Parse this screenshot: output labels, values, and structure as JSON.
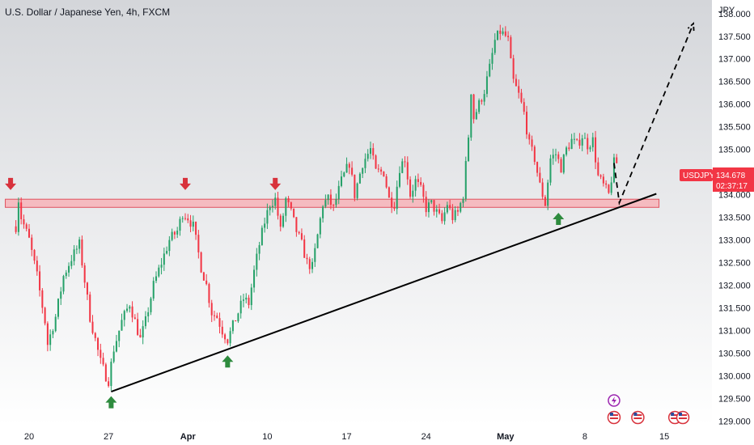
{
  "header": {
    "title": "U.S. Dollar / Japanese Yen, 4h, FXCM"
  },
  "price_axis": {
    "currency": "JPY"
  },
  "last_price": {
    "symbol": "USDJPY",
    "value": "134.678",
    "countdown": "02:37:17"
  },
  "colors": {
    "up": "#26a169",
    "down": "#f23645",
    "zone_fill": "#f7b3b8",
    "zone_stroke": "#e0525f",
    "trendline": "#000000",
    "projection": "#000000",
    "arrow_up": "#2e8b3e",
    "arrow_down": "#d8323c"
  },
  "chart_data": {
    "type": "candlestick",
    "title": "U.S. Dollar / Japanese Yen, 4h, FXCM",
    "symbol": "USDJPY",
    "timeframe": "4h",
    "source": "FXCM",
    "ylim": [
      128.9,
      138.3
    ],
    "y_ticks": [
      "129.000",
      "129.500",
      "130.000",
      "130.500",
      "131.000",
      "131.500",
      "132.000",
      "132.500",
      "133.000",
      "133.500",
      "134.000",
      "134.500",
      "135.000",
      "135.500",
      "136.000",
      "136.500",
      "137.000",
      "137.500",
      "138.000"
    ],
    "x_ticks": [
      {
        "label": "20",
        "i": 5
      },
      {
        "label": "27",
        "i": 35
      },
      {
        "label": "Apr",
        "i": 65
      },
      {
        "label": "10",
        "i": 95
      },
      {
        "label": "17",
        "i": 125
      },
      {
        "label": "24",
        "i": 155
      },
      {
        "label": "May",
        "i": 185
      },
      {
        "label": "8",
        "i": 215
      },
      {
        "label": "15",
        "i": 245
      }
    ],
    "x_range": [
      -6,
      263
    ],
    "candle_count": 232,
    "anchors": [
      [
        0,
        133.3
      ],
      [
        1,
        133.9
      ],
      [
        2,
        133.5
      ],
      [
        5,
        133.0
      ],
      [
        8,
        132.2
      ],
      [
        11,
        131.2
      ],
      [
        12,
        130.7
      ],
      [
        15,
        131.3
      ],
      [
        18,
        132.2
      ],
      [
        21,
        132.6
      ],
      [
        24,
        132.9
      ],
      [
        26,
        132.1
      ],
      [
        28,
        131.3
      ],
      [
        30,
        130.8
      ],
      [
        32,
        130.3
      ],
      [
        34,
        130.0
      ],
      [
        35,
        129.9
      ],
      [
        37,
        130.6
      ],
      [
        40,
        131.2
      ],
      [
        43,
        131.6
      ],
      [
        45,
        131.2
      ],
      [
        47,
        130.8
      ],
      [
        49,
        131.2
      ],
      [
        52,
        132.0
      ],
      [
        55,
        132.5
      ],
      [
        58,
        133.0
      ],
      [
        61,
        133.2
      ],
      [
        63,
        133.6
      ],
      [
        65,
        133.5
      ],
      [
        67,
        133.3
      ],
      [
        70,
        132.4
      ],
      [
        72,
        132.0
      ],
      [
        74,
        131.4
      ],
      [
        76,
        131.3
      ],
      [
        78,
        131.0
      ],
      [
        80,
        130.8
      ],
      [
        82,
        131.1
      ],
      [
        84,
        131.4
      ],
      [
        86,
        131.7
      ],
      [
        88,
        131.6
      ],
      [
        90,
        132.3
      ],
      [
        92,
        132.9
      ],
      [
        94,
        133.4
      ],
      [
        96,
        133.8
      ],
      [
        98,
        133.9
      ],
      [
        100,
        133.2
      ],
      [
        102,
        133.9
      ],
      [
        104,
        133.6
      ],
      [
        106,
        133.2
      ],
      [
        108,
        132.9
      ],
      [
        110,
        132.5
      ],
      [
        112,
        132.4
      ],
      [
        114,
        133.1
      ],
      [
        116,
        133.8
      ],
      [
        118,
        133.9
      ],
      [
        120,
        133.7
      ],
      [
        123,
        134.3
      ],
      [
        126,
        134.7
      ],
      [
        128,
        134.0
      ],
      [
        131,
        134.7
      ],
      [
        134,
        135.0
      ],
      [
        136,
        134.5
      ],
      [
        139,
        134.5
      ],
      [
        141,
        133.9
      ],
      [
        143,
        133.8
      ],
      [
        145,
        134.6
      ],
      [
        147,
        134.8
      ],
      [
        149,
        134.0
      ],
      [
        151,
        134.3
      ],
      [
        153,
        134.1
      ],
      [
        155,
        133.7
      ],
      [
        157,
        133.8
      ],
      [
        159,
        133.6
      ],
      [
        161,
        133.4
      ],
      [
        163,
        133.8
      ],
      [
        165,
        133.5
      ],
      [
        167,
        133.6
      ],
      [
        169,
        134.0
      ],
      [
        171,
        135.3
      ],
      [
        172,
        136.3
      ],
      [
        173,
        135.7
      ],
      [
        175,
        136.0
      ],
      [
        177,
        136.3
      ],
      [
        179,
        136.8
      ],
      [
        181,
        137.4
      ],
      [
        183,
        137.6
      ],
      [
        185,
        137.5
      ],
      [
        186,
        137.4
      ],
      [
        187,
        136.9
      ],
      [
        188,
        136.5
      ],
      [
        190,
        136.2
      ],
      [
        192,
        135.8
      ],
      [
        194,
        135.1
      ],
      [
        196,
        134.8
      ],
      [
        198,
        134.2
      ],
      [
        200,
        133.8
      ],
      [
        202,
        134.8
      ],
      [
        204,
        134.9
      ],
      [
        206,
        134.6
      ],
      [
        208,
        135.0
      ],
      [
        210,
        135.2
      ],
      [
        212,
        135.1
      ],
      [
        214,
        135.3
      ],
      [
        216,
        135.1
      ],
      [
        218,
        135.2
      ],
      [
        220,
        134.4
      ],
      [
        222,
        134.2
      ],
      [
        224,
        134.0
      ],
      [
        226,
        134.7
      ],
      [
        227,
        134.7
      ]
    ],
    "resistance_zone": {
      "top": 133.9,
      "bottom": 133.72,
      "x_start": -4,
      "x_end": 243
    },
    "trendline": {
      "from": {
        "i": 36,
        "price": 129.65
      },
      "to": {
        "i": 242,
        "price": 134.02
      }
    },
    "projection": [
      {
        "i": 226,
        "price": 134.7
      },
      {
        "i": 228,
        "price": 133.82
      },
      {
        "i": 256,
        "price": 137.78
      }
    ],
    "arrows_down": [
      {
        "i": -2,
        "price": 134.05
      },
      {
        "i": 64,
        "price": 134.05
      },
      {
        "i": 98,
        "price": 134.05
      }
    ],
    "arrows_up": [
      {
        "i": 36,
        "price": 129.55
      },
      {
        "i": 80,
        "price": 130.45
      },
      {
        "i": 205,
        "price": 133.6
      }
    ],
    "event_icons": [
      {
        "i": 226,
        "type": "bolt"
      },
      {
        "i": 226,
        "type": "us-flag"
      },
      {
        "i": 235,
        "type": "us-flag"
      },
      {
        "i": 249,
        "type": "us-flag"
      },
      {
        "i": 252,
        "type": "us-flag"
      }
    ]
  }
}
